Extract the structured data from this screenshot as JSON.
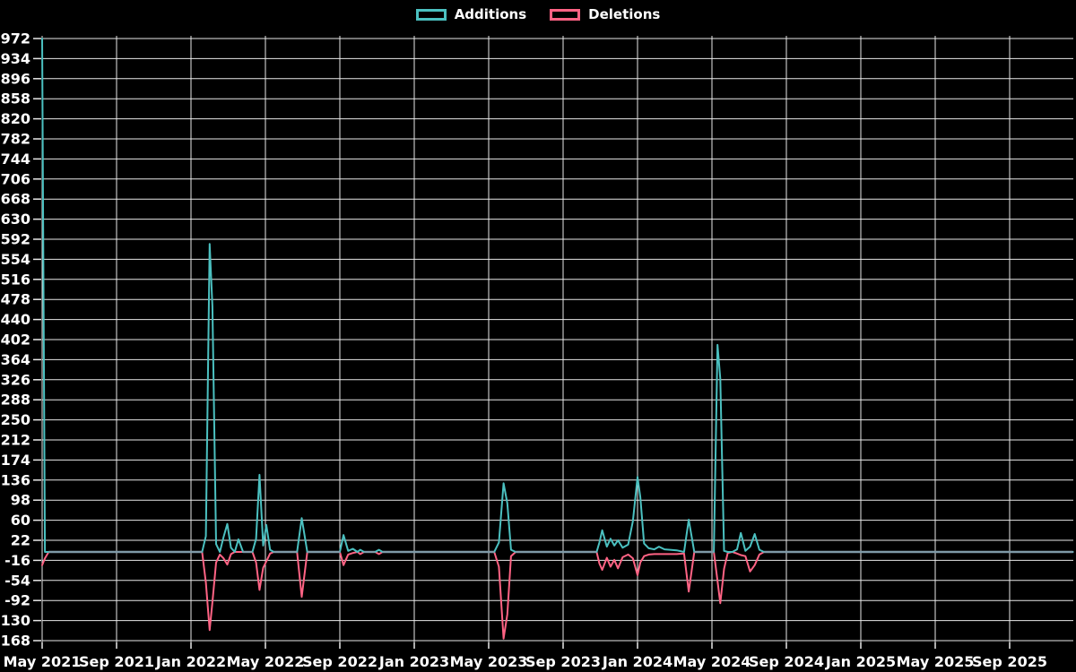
{
  "legend": {
    "items": [
      {
        "label": "Additions",
        "color": "#4bc0c0"
      },
      {
        "label": "Deletions",
        "color": "#ff6384"
      }
    ]
  },
  "colors": {
    "background": "#000000",
    "grid": "#e8e8e8",
    "tick_text": "#ffffff",
    "additions": "#4bc0c0",
    "deletions": "#ff6384",
    "zero_overlap": "#7f9aa8"
  },
  "chart_data": {
    "type": "line",
    "title": "",
    "xlabel": "",
    "ylabel": "",
    "legend_position": "top-center",
    "grid": true,
    "x_unit": "t = months since May 2021 (fractional = weeks within month)",
    "x_range_months": [
      0,
      55.4
    ],
    "y_range": [
      -168,
      972
    ],
    "y_tick_step": 38,
    "y_ticks": [
      972,
      934,
      896,
      858,
      820,
      782,
      744,
      706,
      668,
      630,
      592,
      554,
      516,
      478,
      440,
      402,
      364,
      326,
      288,
      250,
      212,
      174,
      136,
      98,
      60,
      22,
      -16,
      -54,
      -92,
      -130,
      -168
    ],
    "x_ticks": [
      {
        "t": 0,
        "label": "May 2021"
      },
      {
        "t": 4,
        "label": "Sep 2021"
      },
      {
        "t": 8,
        "label": "Jan 2022"
      },
      {
        "t": 12,
        "label": "May 2022"
      },
      {
        "t": 16,
        "label": "Sep 2022"
      },
      {
        "t": 20,
        "label": "Jan 2023"
      },
      {
        "t": 24,
        "label": "May 2023"
      },
      {
        "t": 28,
        "label": "Sep 2023"
      },
      {
        "t": 32,
        "label": "Jan 2024"
      },
      {
        "t": 36,
        "label": "May 2024"
      },
      {
        "t": 40,
        "label": "Sep 2024"
      },
      {
        "t": 44,
        "label": "Jan 2025"
      },
      {
        "t": 48,
        "label": "May 2025"
      },
      {
        "t": 52,
        "label": "Sep 2025"
      }
    ],
    "series": [
      {
        "name": "Additions",
        "color": "#4bc0c0",
        "field": 1
      },
      {
        "name": "Deletions",
        "color": "#ff6384",
        "field": 2
      }
    ],
    "points_format": "[t_months, additions, deletions]",
    "points": [
      [
        0,
        972,
        -25
      ],
      [
        0.15,
        0,
        -12
      ],
      [
        0.35,
        0,
        0
      ],
      [
        8.6,
        0,
        0
      ],
      [
        8.8,
        30,
        -58
      ],
      [
        9.0,
        583,
        -148
      ],
      [
        9.15,
        465,
        -95
      ],
      [
        9.35,
        15,
        -20
      ],
      [
        9.55,
        0,
        -5
      ],
      [
        9.75,
        28,
        -12
      ],
      [
        9.95,
        53,
        -24
      ],
      [
        10.15,
        8,
        -4
      ],
      [
        10.35,
        0,
        0
      ],
      [
        10.55,
        24,
        0
      ],
      [
        10.8,
        0,
        0
      ],
      [
        11.3,
        0,
        0
      ],
      [
        11.5,
        25,
        -20
      ],
      [
        11.68,
        146,
        -72
      ],
      [
        11.88,
        12,
        -30
      ],
      [
        12.05,
        51,
        -18
      ],
      [
        12.25,
        4,
        -3
      ],
      [
        12.45,
        0,
        0
      ],
      [
        13.7,
        0,
        0
      ],
      [
        13.95,
        64,
        -85
      ],
      [
        14.25,
        0,
        0
      ],
      [
        16.0,
        0,
        0
      ],
      [
        16.2,
        32,
        -25
      ],
      [
        16.45,
        2,
        -5
      ],
      [
        16.7,
        6,
        -2
      ],
      [
        16.95,
        0,
        0
      ],
      [
        17.1,
        4,
        -4
      ],
      [
        17.3,
        0,
        0
      ],
      [
        17.9,
        0,
        0
      ],
      [
        18.1,
        4,
        -4
      ],
      [
        18.3,
        0,
        0
      ],
      [
        24.3,
        0,
        0
      ],
      [
        24.55,
        18,
        -28
      ],
      [
        24.8,
        130,
        -164
      ],
      [
        25.0,
        92,
        -118
      ],
      [
        25.2,
        4,
        -8
      ],
      [
        25.45,
        0,
        0
      ],
      [
        29.8,
        0,
        0
      ],
      [
        29.95,
        18,
        -22
      ],
      [
        30.1,
        41,
        -34
      ],
      [
        30.35,
        10,
        -11
      ],
      [
        30.55,
        25,
        -28
      ],
      [
        30.75,
        12,
        -15
      ],
      [
        30.95,
        22,
        -31
      ],
      [
        31.2,
        8,
        -10
      ],
      [
        31.5,
        14,
        -5
      ],
      [
        31.75,
        58,
        -12
      ],
      [
        32.0,
        142,
        -44
      ],
      [
        32.15,
        104,
        -20
      ],
      [
        32.35,
        16,
        -8
      ],
      [
        32.6,
        7,
        -5
      ],
      [
        32.9,
        5,
        -4
      ],
      [
        33.15,
        10,
        -4
      ],
      [
        33.45,
        5,
        -4
      ],
      [
        33.75,
        4,
        -4
      ],
      [
        34.1,
        3,
        -4
      ],
      [
        34.5,
        0,
        -3
      ],
      [
        34.75,
        61,
        -75
      ],
      [
        35.05,
        0,
        0
      ],
      [
        36.1,
        0,
        0
      ],
      [
        36.3,
        392,
        -55
      ],
      [
        36.45,
        328,
        -97
      ],
      [
        36.65,
        2,
        -32
      ],
      [
        36.85,
        0,
        -2
      ],
      [
        37.1,
        0,
        0
      ],
      [
        37.35,
        5,
        -3
      ],
      [
        37.55,
        36,
        -6
      ],
      [
        37.8,
        2,
        -8
      ],
      [
        38.05,
        10,
        -37
      ],
      [
        38.3,
        34,
        -25
      ],
      [
        38.55,
        4,
        -5
      ],
      [
        38.8,
        0,
        0
      ],
      [
        55.4,
        0,
        0
      ]
    ]
  }
}
